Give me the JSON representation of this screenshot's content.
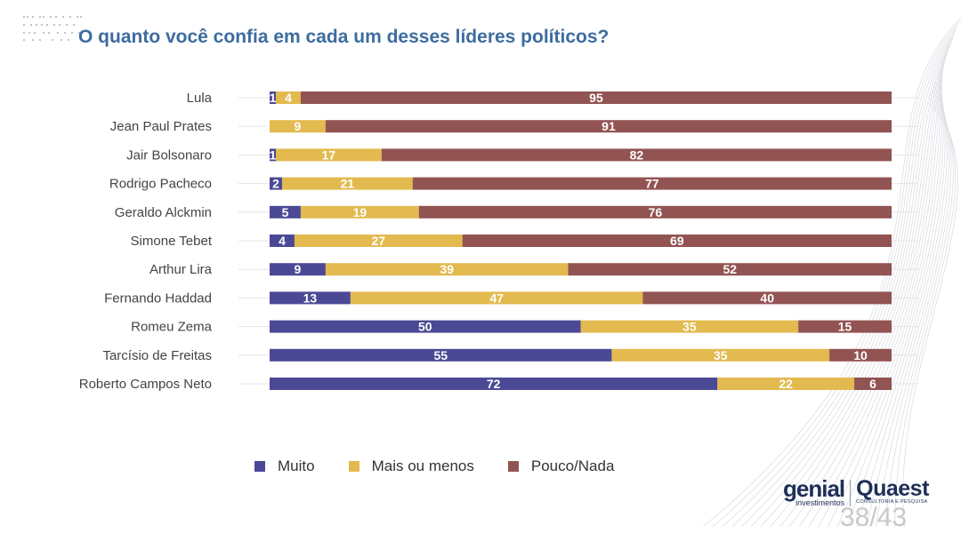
{
  "header": {
    "title": "O quanto você confia em cada um desses líderes políticos?"
  },
  "legend": {
    "items": [
      {
        "label": "Muito",
        "color": "#4b4996"
      },
      {
        "label": "Mais ou menos",
        "color": "#e2ba4f"
      },
      {
        "label": "Pouco/Nada",
        "color": "#925353"
      }
    ]
  },
  "chart_data": {
    "type": "bar",
    "orientation": "horizontal",
    "stacked": true,
    "title": "O quanto você confia em cada um desses líderes políticos?",
    "xlim": [
      0,
      100
    ],
    "grid": false,
    "legend_position": "bottom",
    "categories": [
      "Lula",
      "Jean Paul Prates",
      "Jair Bolsonaro",
      "Rodrigo Pacheco",
      "Geraldo Alckmin",
      "Simone Tebet",
      "Arthur Lira",
      "Fernando Haddad",
      "Romeu Zema",
      "Tarcísio de Freitas",
      "Roberto Campos Neto"
    ],
    "series": [
      {
        "name": "Muito",
        "color": "#4b4996",
        "values": [
          1,
          0,
          1,
          2,
          5,
          4,
          9,
          13,
          50,
          55,
          72
        ]
      },
      {
        "name": "Mais ou menos",
        "color": "#e2ba4f",
        "values": [
          4,
          9,
          17,
          21,
          19,
          27,
          39,
          47,
          35,
          35,
          22
        ]
      },
      {
        "name": "Pouco/Nada",
        "color": "#925353",
        "values": [
          95,
          91,
          82,
          77,
          76,
          69,
          52,
          40,
          15,
          10,
          6
        ]
      }
    ]
  },
  "logos": {
    "genial_name": "genial",
    "genial_sub": "investimentos",
    "quaest_name": "Quaest",
    "quaest_sub": "CONSULTORIA E PESQUISA"
  },
  "page": {
    "number": "38/43"
  }
}
